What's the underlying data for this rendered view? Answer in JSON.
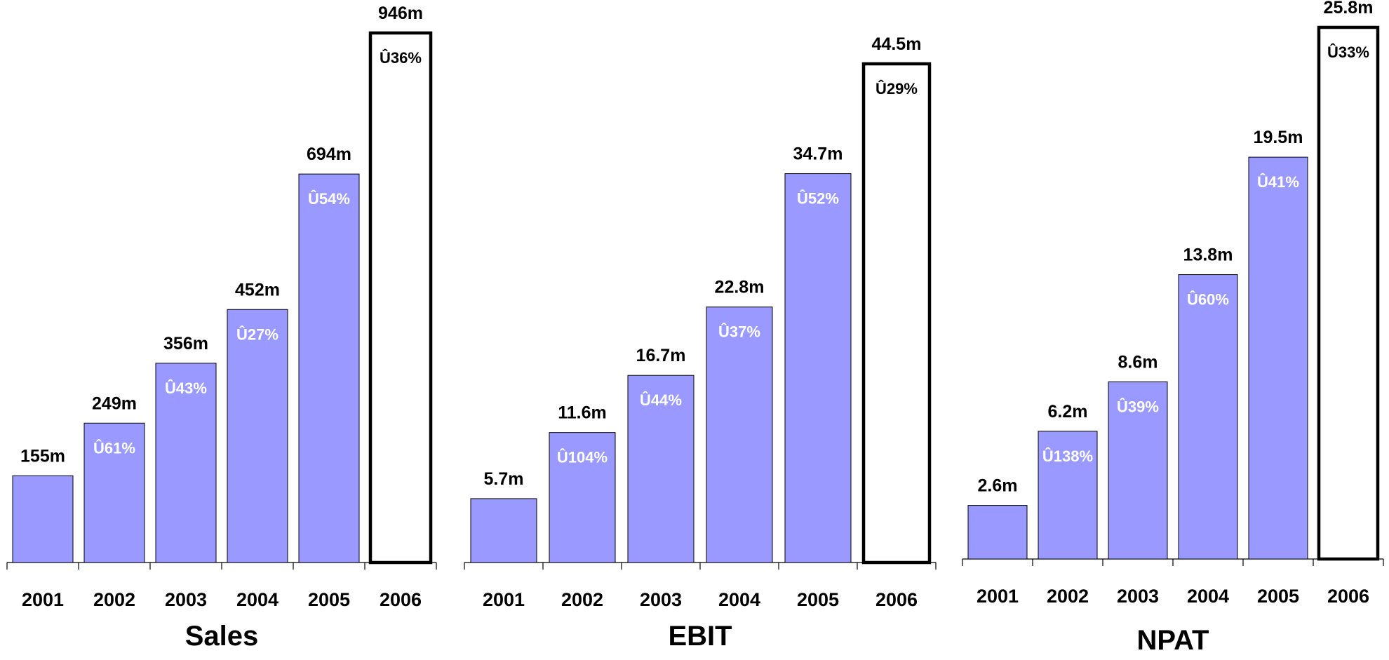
{
  "chart_data": [
    {
      "type": "bar",
      "title": "Sales",
      "categories": [
        "2001",
        "2002",
        "2003",
        "2004",
        "2005",
        "2006"
      ],
      "values": [
        155,
        249,
        356,
        452,
        694,
        946
      ],
      "value_labels": [
        "155m",
        "249m",
        "356m",
        "452m",
        "694m",
        "946m"
      ],
      "growth_labels": [
        "",
        "Û61%",
        "Û43%",
        "Û27%",
        "Û54%",
        "Û36%"
      ],
      "forecast_index": 5,
      "ylim": [
        0,
        946
      ]
    },
    {
      "type": "bar",
      "title": "EBIT",
      "categories": [
        "2001",
        "2002",
        "2003",
        "2004",
        "2005",
        "2006"
      ],
      "values": [
        5.7,
        11.6,
        16.7,
        22.8,
        34.7,
        44.5
      ],
      "value_labels": [
        "5.7m",
        "11.6m",
        "16.7m",
        "22.8m",
        "34.7m",
        "44.5m"
      ],
      "growth_labels": [
        "",
        "Û104%",
        "Û44%",
        "Û37%",
        "Û52%",
        "Û29%"
      ],
      "forecast_index": 5,
      "ylim": [
        0,
        44.5
      ]
    },
    {
      "type": "bar",
      "title": "NPAT",
      "categories": [
        "2001",
        "2002",
        "2003",
        "2004",
        "2005",
        "2006"
      ],
      "values": [
        2.6,
        6.2,
        8.6,
        13.8,
        19.5,
        25.8
      ],
      "value_labels": [
        "2.6m",
        "6.2m",
        "8.6m",
        "13.8m",
        "19.5m",
        "25.8m"
      ],
      "growth_labels": [
        "",
        "Û138%",
        "Û39%",
        "Û60%",
        "Û41%",
        "Û33%"
      ],
      "forecast_index": 5,
      "ylim": [
        0,
        25.8
      ]
    }
  ],
  "colors": {
    "bar_fill": "#9999ff",
    "bar_stroke": "#000000",
    "forecast_fill": "#ffffff",
    "growth_on_bar": "#ffffff",
    "growth_on_forecast": "#000000",
    "text": "#000000"
  }
}
